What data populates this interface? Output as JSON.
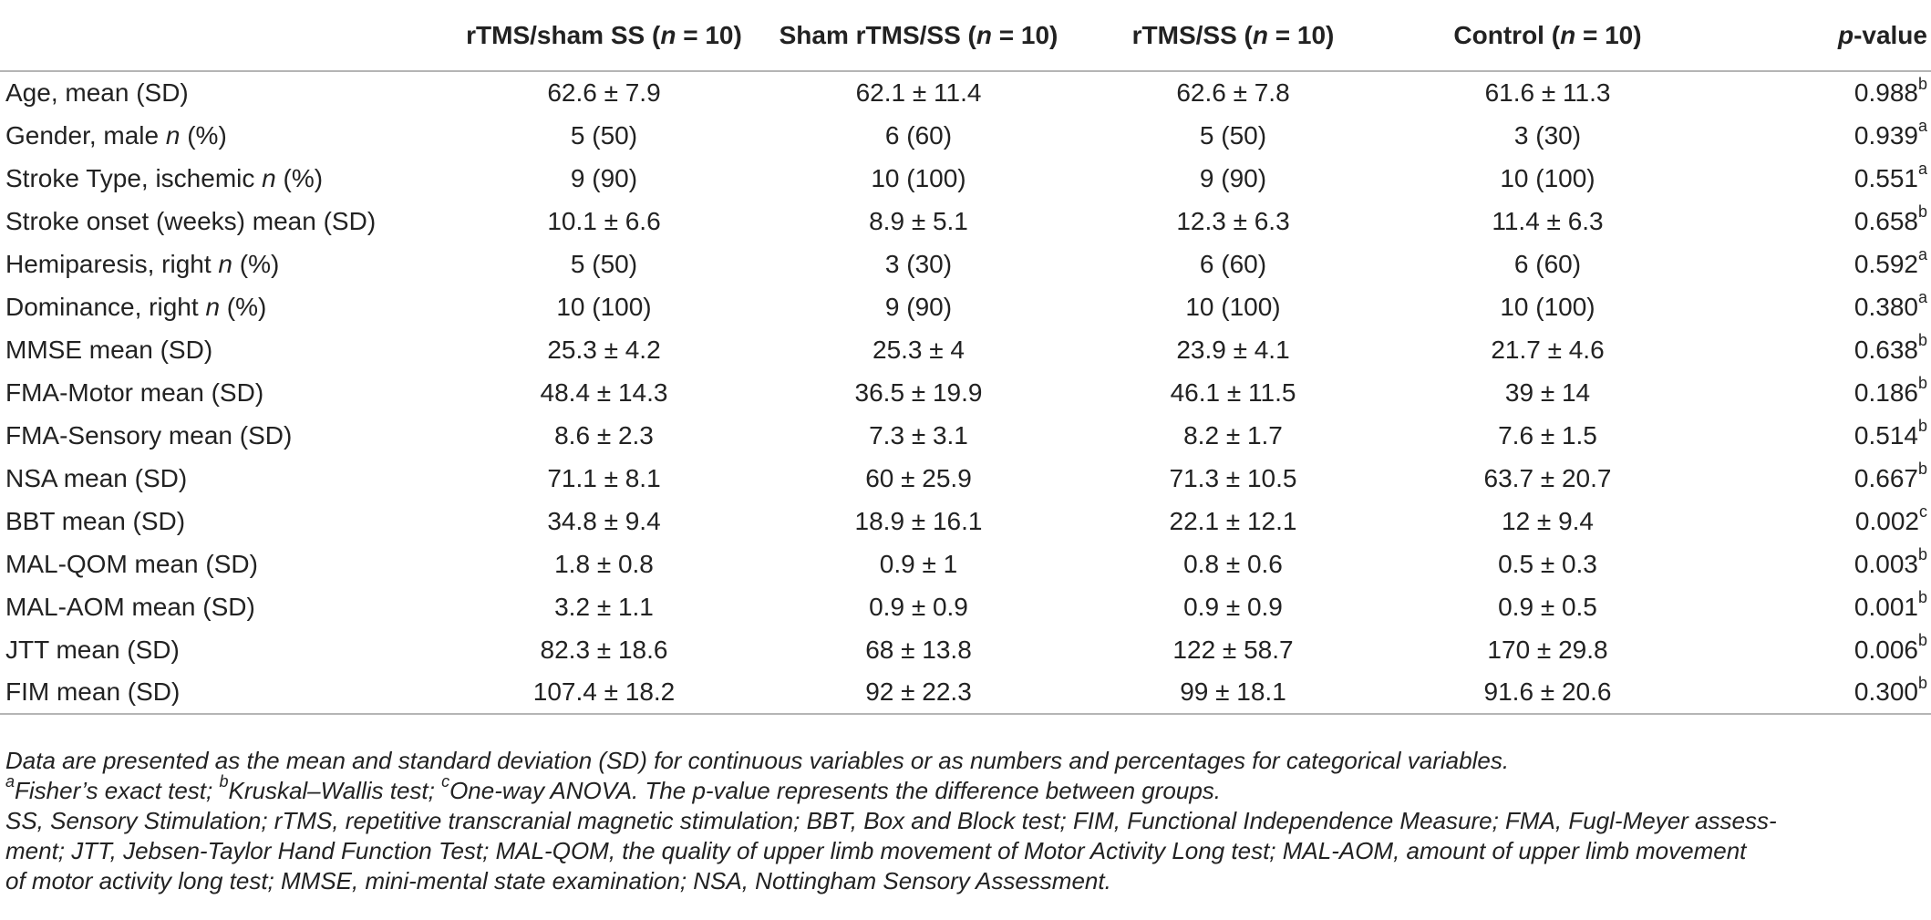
{
  "header": {
    "col1": {
      "label": "rTMS/sham SS (",
      "n": "n",
      "rest": " = 10)"
    },
    "col2": {
      "label": "Sham rTMS/SS (",
      "n": "n",
      "rest": " = 10)"
    },
    "col3": {
      "label": "rTMS/SS (",
      "n": "n",
      "rest": " = 10)"
    },
    "col4": {
      "label": "Control (",
      "n": "n",
      "rest": " = 10)"
    },
    "col5": {
      "p": "p",
      "rest": "-value"
    }
  },
  "rows": [
    {
      "label": "Age, mean (SD)",
      "v1": "62.6 ± 7.9",
      "v2": "62.1 ± 11.4",
      "v3": "62.6 ± 7.8",
      "v4": "61.6 ± 11.3",
      "p": "0.988",
      "sup": "b"
    },
    {
      "label_pre": "Gender, male ",
      "label_it": "n",
      "label_post": " (%)",
      "v1": "5 (50)",
      "v2": "6 (60)",
      "v3": "5 (50)",
      "v4": "3 (30)",
      "p": "0.939",
      "sup": "a"
    },
    {
      "label_pre": "Stroke Type, ischemic ",
      "label_it": "n",
      "label_post": " (%)",
      "v1": "9 (90)",
      "v2": "10 (100)",
      "v3": "9 (90)",
      "v4": "10 (100)",
      "p": "0.551",
      "sup": "a"
    },
    {
      "label": "Stroke onset (weeks) mean (SD)",
      "v1": "10.1 ± 6.6",
      "v2": "8.9 ± 5.1",
      "v3": "12.3 ± 6.3",
      "v4": "11.4 ± 6.3",
      "p": "0.658",
      "sup": "b"
    },
    {
      "label_pre": "Hemiparesis, right ",
      "label_it": "n",
      "label_post": " (%)",
      "v1": "5 (50)",
      "v2": "3 (30)",
      "v3": "6 (60)",
      "v4": "6 (60)",
      "p": "0.592",
      "sup": "a"
    },
    {
      "label_pre": "Dominance, right ",
      "label_it": "n",
      "label_post": " (%)",
      "v1": "10 (100)",
      "v2": "9 (90)",
      "v3": "10 (100)",
      "v4": "10 (100)",
      "p": "0.380",
      "sup": "a"
    },
    {
      "label": "MMSE mean (SD)",
      "v1": "25.3 ± 4.2",
      "v2": "25.3 ± 4",
      "v3": "23.9 ± 4.1",
      "v4": "21.7 ± 4.6",
      "p": "0.638",
      "sup": "b"
    },
    {
      "label": "FMA-Motor mean (SD)",
      "v1": "48.4 ± 14.3",
      "v2": "36.5 ± 19.9",
      "v3": "46.1 ± 11.5",
      "v4": "39 ± 14",
      "p": "0.186",
      "sup": "b"
    },
    {
      "label": "FMA-Sensory mean (SD)",
      "v1": "8.6 ± 2.3",
      "v2": "7.3 ± 3.1",
      "v3": "8.2 ± 1.7",
      "v4": "7.6 ± 1.5",
      "p": "0.514",
      "sup": "b"
    },
    {
      "label": "NSA mean (SD)",
      "v1": "71.1 ± 8.1",
      "v2": "60 ± 25.9",
      "v3": "71.3 ± 10.5",
      "v4": "63.7 ± 20.7",
      "p": "0.667",
      "sup": "b"
    },
    {
      "label": "BBT mean (SD)",
      "v1": "34.8 ± 9.4",
      "v2": "18.9 ± 16.1",
      "v3": "22.1 ± 12.1",
      "v4": "12 ± 9.4",
      "p": "0.002",
      "sup": "c"
    },
    {
      "label": "MAL-QOM mean (SD)",
      "v1": "1.8 ± 0.8",
      "v2": "0.9 ± 1",
      "v3": "0.8 ± 0.6",
      "v4": "0.5 ± 0.3",
      "p": "0.003",
      "sup": "b"
    },
    {
      "label": "MAL-AOM mean (SD)",
      "v1": "3.2 ± 1.1",
      "v2": "0.9 ± 0.9",
      "v3": "0.9 ± 0.9",
      "v4": "0.9 ± 0.5",
      "p": "0.001",
      "sup": "b"
    },
    {
      "label": "JTT mean (SD)",
      "v1": "82.3 ± 18.6",
      "v2": "68 ± 13.8",
      "v3": "122 ± 58.7",
      "v4": "170 ± 29.8",
      "p": "0.006",
      "sup": "b"
    },
    {
      "label": "FIM mean (SD)",
      "v1": "107.4 ± 18.2",
      "v2": "92 ± 22.3",
      "v3": "99 ± 18.1",
      "v4": "91.6 ± 20.6",
      "p": "0.300",
      "sup": "b"
    }
  ],
  "notes": {
    "line1": "Data are presented as the mean and standard deviation (SD) for continuous variables or as numbers and percentages for categorical variables.",
    "sup_a": "a",
    "text_a": "Fisher’s exact test; ",
    "sup_b": "b",
    "text_b": "Kruskal–Wallis test; ",
    "sup_c": "c",
    "text_c": "One-way ANOVA. The p-value represents the difference between groups.",
    "abbrev_1": "SS, Sensory Stimulation; rTMS, repetitive transcranial magnetic stimulation; BBT, Box and Block test; FIM, Functional Independence Measure; FMA, Fugl-Meyer assess-",
    "abbrev_2": "ment; JTT, Jebsen-Taylor Hand Function Test; MAL-QOM, the quality of upper limb movement of Motor Activity Long test; MAL-AOM, amount of upper limb movement",
    "abbrev_3": "of motor activity long test; MMSE, mini-mental state examination; NSA, Nottingham Sensory Assessment."
  }
}
